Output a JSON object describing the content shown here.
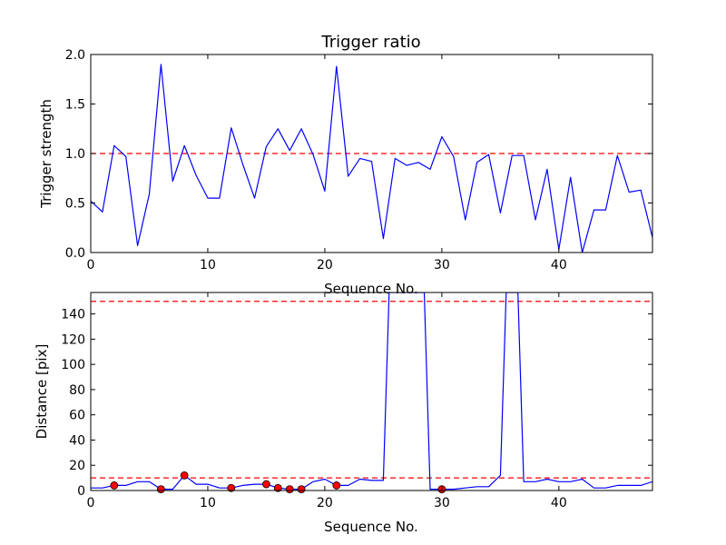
{
  "chart_data": [
    {
      "type": "line",
      "title": "Trigger ratio",
      "xlabel": "Sequence No.",
      "ylabel": "Trigger strength",
      "xlim": [
        0,
        48
      ],
      "ylim": [
        0.0,
        2.0
      ],
      "xticks": [
        "0",
        "10",
        "20",
        "30",
        "40"
      ],
      "xtick_values": [
        0,
        10,
        20,
        30,
        40
      ],
      "yticks": [
        "0.0",
        "0.5",
        "1.0",
        "1.5",
        "2.0"
      ],
      "ytick_values": [
        0.0,
        0.5,
        1.0,
        1.5,
        2.0
      ],
      "grid": false,
      "series": [
        {
          "color": "#0000ff",
          "x": [
            0,
            1,
            2,
            3,
            4,
            5,
            6,
            7,
            8,
            9,
            10,
            11,
            12,
            13,
            14,
            15,
            16,
            17,
            18,
            19,
            20,
            21,
            22,
            23,
            24,
            25,
            26,
            27,
            28,
            29,
            30,
            31,
            32,
            33,
            34,
            35,
            36,
            37,
            38,
            39,
            40,
            41,
            42,
            43,
            44,
            45,
            46,
            47,
            48
          ],
          "values": [
            0.52,
            0.41,
            1.08,
            0.97,
            0.07,
            0.59,
            1.9,
            0.72,
            1.08,
            0.78,
            0.55,
            0.55,
            1.26,
            0.89,
            0.55,
            1.07,
            1.25,
            1.03,
            1.25,
            0.99,
            0.62,
            1.88,
            0.77,
            0.95,
            0.92,
            0.14,
            0.95,
            0.88,
            0.91,
            0.84,
            1.17,
            0.97,
            0.33,
            0.91,
            0.99,
            0.4,
            0.98,
            0.98,
            0.33,
            0.84,
            0.03,
            0.76,
            0.0,
            0.43,
            0.43,
            0.98,
            0.61,
            0.63,
            0.15
          ]
        }
      ],
      "threshold": {
        "value": 1.0,
        "color": "#ff0000",
        "style": "dashed"
      }
    },
    {
      "type": "line",
      "title": "",
      "xlabel": "Sequence No.",
      "ylabel": "Distance [pix]",
      "xlim": [
        0,
        48
      ],
      "ylim": [
        0,
        157
      ],
      "xticks": [
        "0",
        "10",
        "20",
        "30",
        "40"
      ],
      "xtick_values": [
        0,
        10,
        20,
        30,
        40
      ],
      "yticks": [
        "0",
        "20",
        "40",
        "60",
        "80",
        "100",
        "120",
        "140"
      ],
      "ytick_values": [
        0,
        20,
        40,
        60,
        80,
        100,
        120,
        140
      ],
      "grid": false,
      "series": [
        {
          "color": "#0000ff",
          "x": [
            0,
            1,
            2,
            3,
            4,
            5,
            6,
            7,
            8,
            9,
            10,
            11,
            12,
            13,
            14,
            15,
            16,
            17,
            18,
            19,
            20,
            21,
            22,
            23,
            24,
            25,
            25.5,
            26,
            27,
            28,
            28.5,
            29,
            30,
            31,
            32,
            33,
            34,
            35,
            35.5,
            36,
            36.5,
            37,
            38,
            39,
            40,
            41,
            42,
            43,
            44,
            45,
            46,
            47,
            48
          ],
          "values": [
            2,
            2,
            4,
            4,
            7,
            7,
            1,
            1,
            12,
            5,
            5,
            2,
            2,
            4,
            5,
            5,
            2,
            1,
            1,
            7,
            9,
            4,
            4,
            9,
            8,
            8,
            157,
            157,
            157,
            157,
            157,
            1,
            1,
            1,
            2,
            3,
            3,
            12,
            157,
            157,
            157,
            7,
            7,
            9,
            7,
            7,
            9,
            2,
            2,
            4,
            4,
            4,
            7
          ]
        }
      ],
      "markers": {
        "color": "#ff0000",
        "x": [
          2,
          6,
          8,
          12,
          15,
          16,
          17,
          18,
          21,
          30
        ],
        "values": [
          4,
          1,
          12,
          2,
          5,
          2,
          1,
          1,
          4,
          1
        ]
      },
      "thresholds": [
        {
          "value": 150,
          "color": "#ff0000",
          "style": "dashed"
        },
        {
          "value": 10,
          "color": "#ff0000",
          "style": "dashed"
        }
      ]
    }
  ]
}
